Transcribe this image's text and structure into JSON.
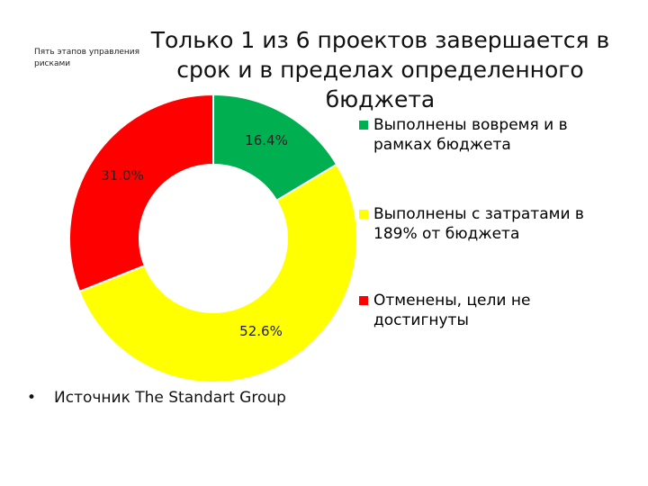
{
  "header": {
    "corner_text": "Пять этапов управления рисками",
    "title": "Только 1 из 6 проектов завершается в срок и в пределах определенного бюджета"
  },
  "chart_data": {
    "type": "pie",
    "donut": true,
    "categories": [
      "Выполнены вовремя и в рамках бюджета",
      "Выполнены с затратами в 189% от бюджета",
      "Отменены, цели не достигнуты"
    ],
    "values": [
      16.4,
      52.6,
      31.0
    ],
    "labels": [
      "16.4%",
      "52.6%",
      "31.0%"
    ],
    "colors": [
      "#00b050",
      "#ffff00",
      "#ff0000"
    ],
    "legend_position": "right"
  },
  "source": {
    "bullet": "•",
    "text": "Источник The Standart Group"
  }
}
